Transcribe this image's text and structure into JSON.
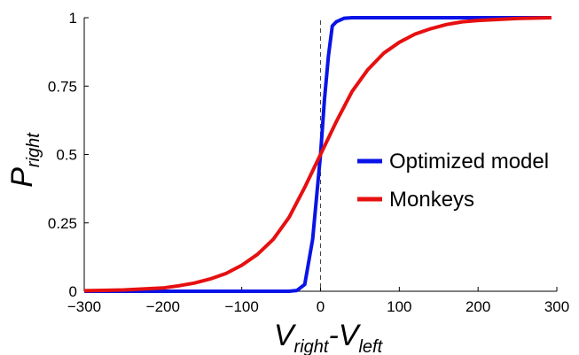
{
  "chart_data": {
    "type": "line",
    "title": "",
    "xlabel": {
      "main1": "V",
      "sub1": "right",
      "sep": "-",
      "main2": "V",
      "sub2": "left"
    },
    "ylabel": {
      "main": "P",
      "sub": "right"
    },
    "xlim": [
      -300,
      300
    ],
    "ylim": [
      0,
      1
    ],
    "xticks": [
      -300,
      -200,
      -100,
      0,
      100,
      200,
      300
    ],
    "xtick_labels": [
      "−300",
      "−200",
      "−100",
      "0",
      "100",
      "200",
      "300"
    ],
    "yticks": [
      0,
      0.25,
      0.5,
      0.75,
      1
    ],
    "ytick_labels": [
      "0",
      "0.25",
      "0.5",
      "0.75",
      "1"
    ],
    "grid": false,
    "legend_position": "right-center",
    "reference_line": {
      "x": 0,
      "style": "dashed"
    },
    "series": [
      {
        "name": "Optimized model",
        "color": "#0a14e6",
        "x": [
          -300,
          -40,
          -30,
          -20,
          -10,
          0,
          5,
          10,
          15,
          20,
          30,
          40,
          60,
          100,
          200,
          293
        ],
        "y": [
          0,
          0,
          0.003,
          0.025,
          0.19,
          0.5,
          0.7,
          0.86,
          0.97,
          0.985,
          0.998,
          1,
          1,
          1,
          1,
          1
        ]
      },
      {
        "name": "Monkeys",
        "color": "#e61010",
        "x": [
          -300,
          -250,
          -200,
          -180,
          -160,
          -140,
          -120,
          -100,
          -80,
          -60,
          -40,
          -20,
          0,
          20,
          40,
          60,
          80,
          100,
          120,
          140,
          160,
          180,
          200,
          250,
          293
        ],
        "y": [
          0.002,
          0.005,
          0.012,
          0.02,
          0.03,
          0.045,
          0.065,
          0.095,
          0.135,
          0.19,
          0.27,
          0.38,
          0.5,
          0.62,
          0.73,
          0.81,
          0.87,
          0.91,
          0.94,
          0.96,
          0.975,
          0.985,
          0.99,
          0.997,
          1
        ]
      }
    ]
  }
}
